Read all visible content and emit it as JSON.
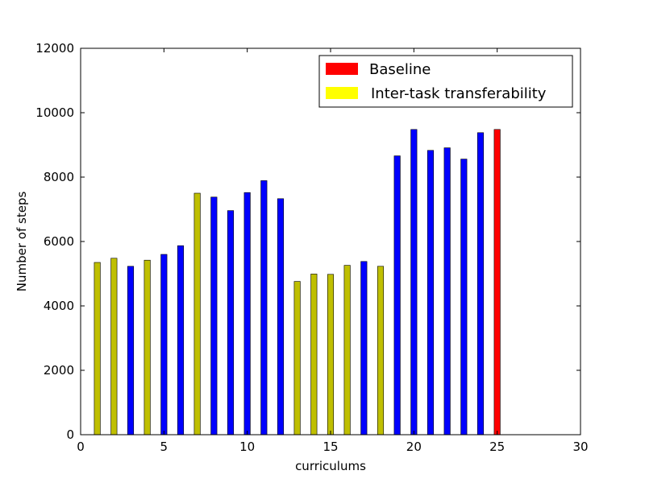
{
  "chart_data": {
    "type": "bar",
    "title": "",
    "xlabel": "curriculums",
    "ylabel": "Number of steps",
    "xlim": [
      0,
      30
    ],
    "ylim": [
      0,
      12000
    ],
    "xticks": [
      0,
      5,
      10,
      15,
      20,
      25,
      30
    ],
    "yticks": [
      0,
      2000,
      4000,
      6000,
      8000,
      10000,
      12000
    ],
    "grid": false,
    "legend_position": "top-right",
    "colors": {
      "blue": "#0000ff",
      "olive": "#bfbf00",
      "red": "#ff0000",
      "legend_yellow": "#ffff00"
    },
    "legend": [
      {
        "label": "Baseline",
        "color": "#ff0000"
      },
      {
        "label": "Inter-task transferability",
        "color": "#ffff00"
      }
    ],
    "x": [
      1,
      2,
      3,
      4,
      5,
      6,
      7,
      8,
      9,
      10,
      11,
      12,
      13,
      14,
      15,
      16,
      17,
      18,
      19,
      20,
      21,
      22,
      23,
      24,
      25
    ],
    "values": [
      5350,
      5480,
      5230,
      5420,
      5600,
      5870,
      7500,
      7380,
      6960,
      7520,
      7890,
      7330,
      4760,
      4990,
      4980,
      5260,
      5380,
      5230,
      8660,
      9480,
      8830,
      8910,
      8560,
      9380,
      9480
    ],
    "bar_colors": [
      "olive",
      "olive",
      "blue",
      "olive",
      "blue",
      "blue",
      "olive",
      "blue",
      "blue",
      "blue",
      "blue",
      "blue",
      "olive",
      "olive",
      "olive",
      "olive",
      "blue",
      "olive",
      "blue",
      "blue",
      "blue",
      "blue",
      "blue",
      "blue",
      "red"
    ]
  }
}
